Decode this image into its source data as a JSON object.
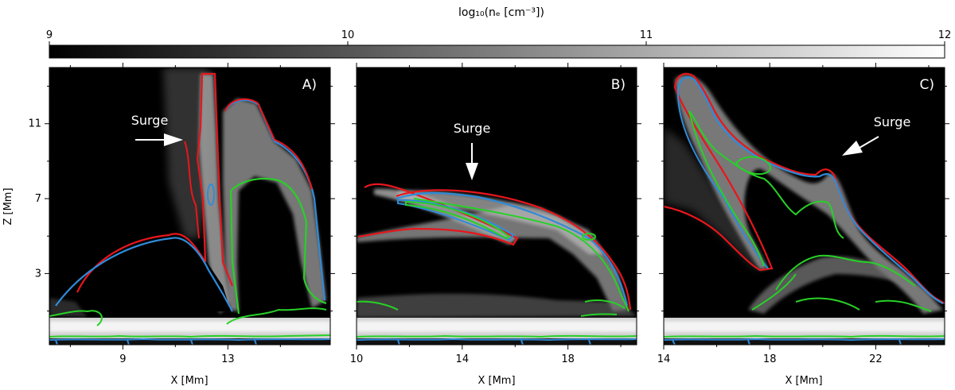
{
  "chart_data": {
    "type": "heatmap",
    "colorbar": {
      "label": "log₁₀(nₑ [cm⁻³])",
      "range": [
        9,
        12
      ],
      "ticks": [
        9,
        10,
        11,
        12
      ],
      "tick_labels": [
        "9",
        "10",
        "11",
        "12"
      ],
      "colormap": "gray"
    },
    "contour_colors": {
      "red": "#e8161c",
      "blue": "#2f8bd9",
      "green": "#27d127"
    },
    "panels": [
      {
        "id": "A",
        "label": "A)",
        "xlim": [
          6.2,
          16.9
        ],
        "ylim": [
          -0.8,
          14.0
        ],
        "xticks": [
          9,
          13
        ],
        "xtick_labels": [
          "9",
          "13"
        ],
        "yticks": [
          3,
          7,
          11
        ],
        "ytick_labels": [
          "3",
          "7",
          "11"
        ],
        "xlabel": "X [Mm]",
        "ylabel": "Z [Mm]",
        "annotation": {
          "text": "Surge",
          "arrow": "right"
        }
      },
      {
        "id": "B",
        "label": "B)",
        "xlim": [
          10.0,
          20.6
        ],
        "ylim": [
          -0.8,
          14.0
        ],
        "xticks": [
          10,
          14,
          18
        ],
        "xtick_labels": [
          "10",
          "14",
          "18"
        ],
        "yticks": [
          3,
          7,
          11
        ],
        "ytick_labels": [],
        "xlabel": "X [Mm]",
        "ylabel": "",
        "annotation": {
          "text": "Surge",
          "arrow": "down"
        }
      },
      {
        "id": "C",
        "label": "C)",
        "xlim": [
          14.0,
          24.6
        ],
        "ylim": [
          -0.8,
          14.0
        ],
        "xticks": [
          14,
          18,
          22
        ],
        "xtick_labels": [
          "14",
          "18",
          "22"
        ],
        "yticks": [
          3,
          7,
          11
        ],
        "ytick_labels": [],
        "xlabel": "X [Mm]",
        "ylabel": "",
        "annotation": {
          "text": "Surge",
          "arrow": "down-left"
        }
      }
    ]
  }
}
